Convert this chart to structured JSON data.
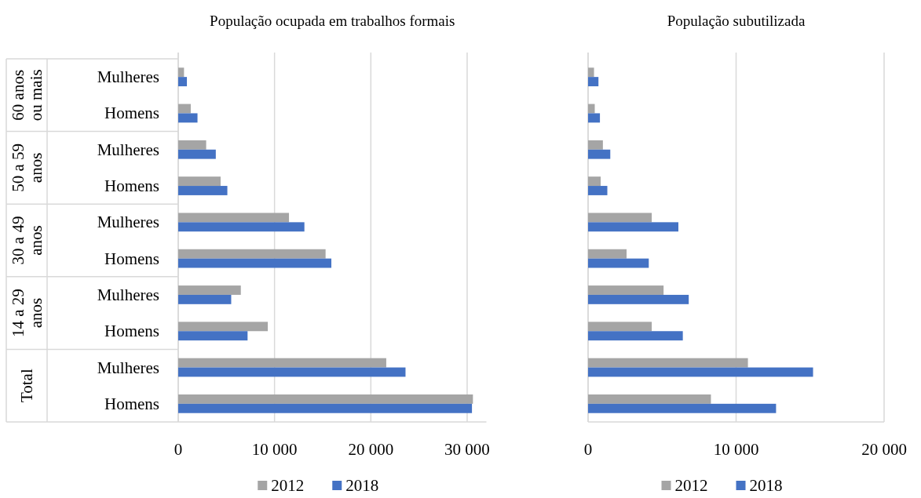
{
  "chart_data": [
    {
      "type": "bar",
      "orientation": "horizontal",
      "title": "População ocupada em trabalhos formais",
      "categories": [
        "Mulheres",
        "Homens",
        "Mulheres",
        "Homens",
        "Mulheres",
        "Homens",
        "Mulheres",
        "Homens",
        "Mulheres",
        "Homens"
      ],
      "annotations": [
        "60 anos ou mais",
        "50 a 59 anos",
        "30 a 49 anos",
        "14 a 29 anos",
        "Total"
      ],
      "series": [
        {
          "name": "2012",
          "color": "#a5a5a5",
          "values": [
            600,
            1300,
            2900,
            4400,
            11500,
            15300,
            6500,
            9300,
            21600,
            30600
          ]
        },
        {
          "name": "2018",
          "color": "#4472c4",
          "values": [
            900,
            2000,
            3900,
            5100,
            13100,
            15900,
            5500,
            7200,
            23600,
            30500
          ]
        }
      ],
      "xlim": [
        0,
        32000
      ],
      "xticks": [
        0,
        {
          "value": 10000,
          "label": "10 000"
        },
        {
          "value": 20000,
          "label": "20 000"
        },
        {
          "value": 30000,
          "label": "30 000"
        }
      ],
      "grid": "x",
      "legend": "bottom"
    },
    {
      "type": "bar",
      "orientation": "horizontal",
      "title": "População subutilizada",
      "categories": [
        null,
        null,
        null,
        null,
        null,
        null,
        null,
        null,
        null,
        null
      ],
      "series": [
        {
          "name": "2012",
          "color": "#a5a5a5",
          "values": [
            400,
            450,
            1000,
            850,
            4300,
            2600,
            5100,
            4300,
            10800,
            8300
          ]
        },
        {
          "name": "2018",
          "color": "#4472c4",
          "values": [
            700,
            800,
            1500,
            1300,
            6100,
            4100,
            6800,
            6400,
            15200,
            12700
          ]
        }
      ],
      "xlim": [
        0,
        20000
      ],
      "xticks": [
        0,
        {
          "value": 10000,
          "label": "10 000"
        },
        {
          "value": 20000,
          "label": "20 000"
        }
      ],
      "grid": "x",
      "legend": "bottom",
      "tick_labels": "x"
    }
  ]
}
